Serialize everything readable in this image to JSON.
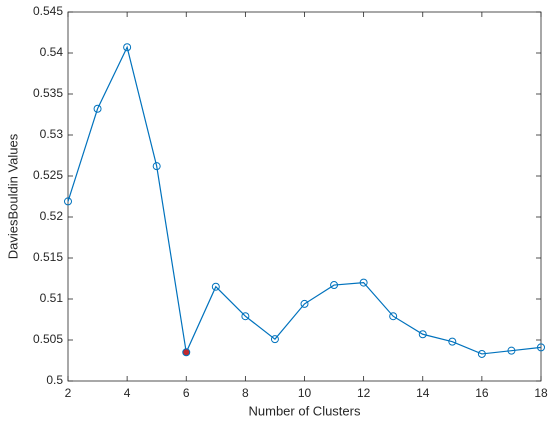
{
  "chart_data": {
    "type": "line",
    "x": [
      2,
      3,
      4,
      5,
      6,
      7,
      8,
      9,
      10,
      11,
      12,
      13,
      14,
      15,
      16,
      17,
      18
    ],
    "series": [
      {
        "color": "#0072bd",
        "values": [
          0.5219,
          0.5332,
          0.5407,
          0.5262,
          0.5035,
          0.5115,
          0.5079,
          0.5051,
          0.5094,
          0.5117,
          0.512,
          0.5079,
          0.5057,
          0.5048,
          0.5033,
          0.5037,
          0.5041
        ]
      }
    ],
    "marker": "circle",
    "highlight": {
      "index": 4,
      "color": "#c0282e"
    },
    "xlabel": "Number of Clusters",
    "ylabel": "DaviesBouldin Values",
    "xlim": [
      2,
      18
    ],
    "xticks": [
      2,
      4,
      6,
      8,
      10,
      12,
      14,
      16,
      18
    ],
    "ylim": [
      0.5,
      0.545
    ],
    "yticks": [
      0.5,
      0.505,
      0.51,
      0.515,
      0.52,
      0.525,
      0.53,
      0.535,
      0.54,
      0.545
    ],
    "grid": false
  }
}
